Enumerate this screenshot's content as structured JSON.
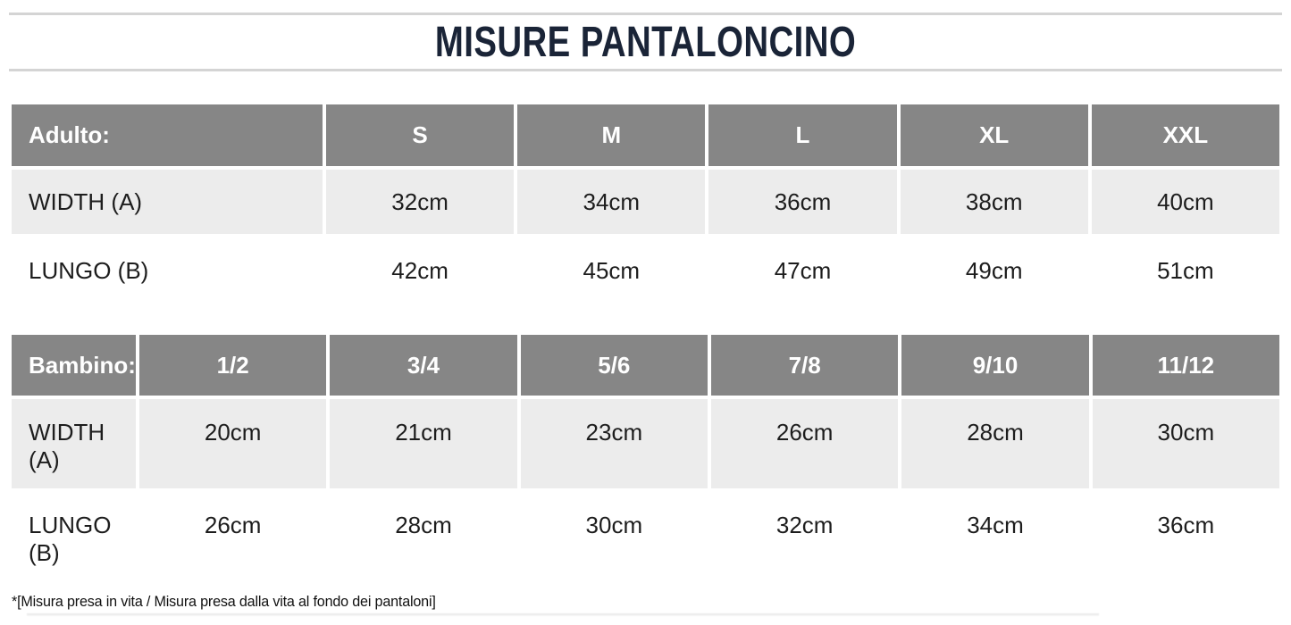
{
  "page": {
    "title": "MISURE PANTALONCINO",
    "footnote": "*[Misura presa in vita / Misura presa dalla vita al fondo dei pantaloni]"
  },
  "colors": {
    "title_text": "#1a2437",
    "divider": "#d4d4d4",
    "table_header_bg": "#868686",
    "table_header_text": "#ffffff",
    "row_alt_bg": "#ececec",
    "row_plain_bg": "#ffffff",
    "body_text": "#1d1d1d"
  },
  "chart_data": [
    {
      "type": "table",
      "title": "Adulto:",
      "columns": [
        "Adulto:",
        "S",
        "M",
        "L",
        "XL",
        "XXL"
      ],
      "rows": [
        [
          "WIDTH (A)",
          "32cm",
          "34cm",
          "36cm",
          "38cm",
          "40cm"
        ],
        [
          "LUNGO (B)",
          "42cm",
          "45cm",
          "47cm",
          "49cm",
          "51cm"
        ]
      ]
    },
    {
      "type": "table",
      "title": "Bambino:",
      "columns": [
        "Bambino:",
        "1/2",
        "3/4",
        "5/6",
        "7/8",
        "9/10",
        "11/12"
      ],
      "rows": [
        [
          "WIDTH (A)",
          "20cm",
          "21cm",
          "23cm",
          "26cm",
          "28cm",
          "30cm"
        ],
        [
          "LUNGO (B)",
          "26cm",
          "28cm",
          "30cm",
          "32cm",
          "34cm",
          "36cm"
        ]
      ]
    }
  ]
}
